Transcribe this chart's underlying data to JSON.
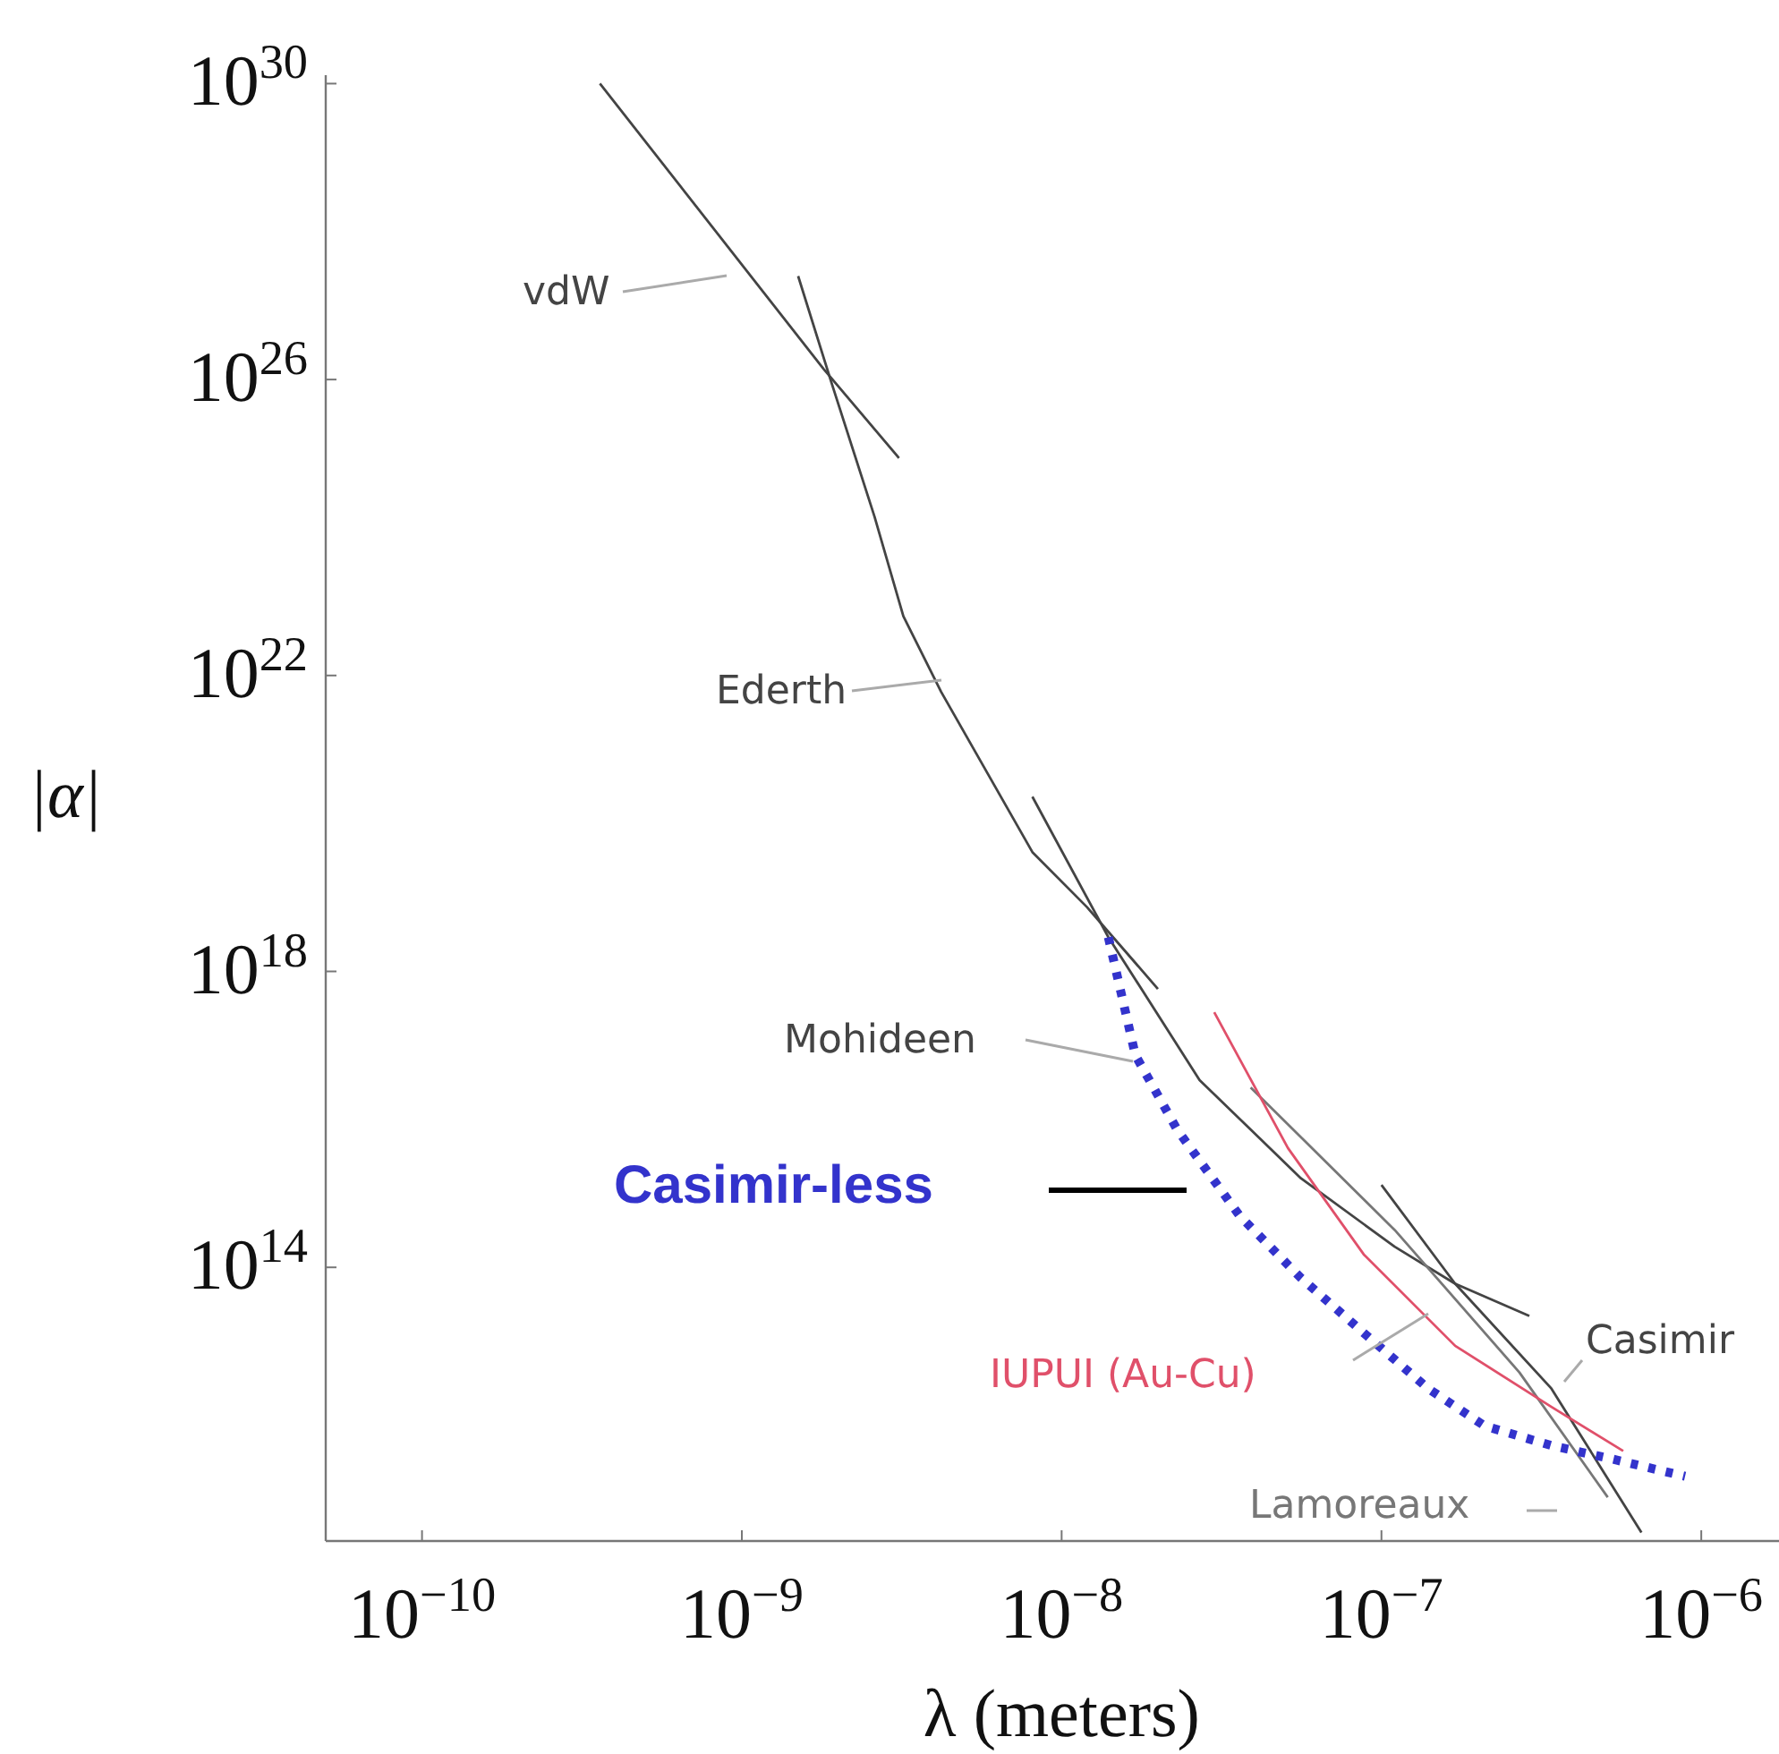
{
  "chart_data": {
    "type": "line",
    "xlabel": "λ (meters)",
    "ylabel": "|α|",
    "log": "xy",
    "grid": false,
    "xlim": [
      5e-11,
      1.75e-06
    ],
    "ylim": [
      20000000000.0,
      1.3e+30
    ],
    "xticks": [
      {
        "value": 1e-10,
        "label": "10$^{−10}$"
      },
      {
        "value": 1e-09,
        "label": "10$^{−9}$"
      },
      {
        "value": 1e-08,
        "label": "10$^{−8}$"
      },
      {
        "value": 1e-07,
        "label": "10$^{−7}$"
      },
      {
        "value": 1e-06,
        "label": "10$^{−6}$"
      }
    ],
    "yticks": [
      {
        "value": 100000000000000.0,
        "label": "10$^{14}$"
      },
      {
        "value": 1e+18,
        "label": "10$^{18}$"
      },
      {
        "value": 1e+22,
        "label": "10$^{22}$"
      },
      {
        "value": 1e+26,
        "label": "10$^{26}$"
      },
      {
        "value": 1e+30,
        "label": "10$^{30}$"
      }
    ],
    "series": [
      {
        "name": "vdW",
        "color": "#444444",
        "x": [
          3.6e-10,
          1.8e-09,
          3.1e-09
        ],
        "values": [
          1e+30,
          1.4e+26,
          8.7e+24
        ]
      },
      {
        "name": "Ederth",
        "color": "#444444",
        "x": [
          1.5e-09,
          1.9e-09,
          2.6e-09,
          3.2e-09,
          4.2e-09,
          8.1e-09,
          1.2e-08,
          2e-08
        ],
        "values": [
          2.5e+27,
          9.5e+25,
          1.4e+24,
          6.3e+22,
          6e+21,
          4.1e+19,
          7.4e+18,
          5.8e+17
        ]
      },
      {
        "name": "Mohideen",
        "color": "#444444",
        "x": [
          8.1e-09,
          1.4e-08,
          2.7e-08,
          5.6e-08,
          1.1e-07,
          1.7e-07,
          2.9e-07
        ],
        "values": [
          2.3e+20,
          2.9e+18,
          3.4e+16,
          1600000000000000.0,
          190000000000000.0,
          60000000000000.0,
          22000000000000.0
        ]
      },
      {
        "name": "Casimir",
        "color": "#444444",
        "x": [
          1e-07,
          1.7e-07,
          3.4e-07,
          6.5e-07
        ],
        "values": [
          1300000000000000.0,
          60000000000000.0,
          2300000000000.0,
          26000000000.0
        ]
      },
      {
        "name": "Lamoreaux",
        "color": "#777777",
        "x": [
          3.9e-08,
          1.1e-07,
          2.7e-07,
          5.1e-07
        ],
        "values": [
          2.7e+16,
          320000000000000.0,
          3800000000000.0,
          78000000000.0
        ]
      },
      {
        "name": "IUPUI (Au-Cu)",
        "color": "#e0506a",
        "x": [
          3e-08,
          5.1e-08,
          8.8e-08,
          1.7e-07,
          3.4e-07,
          5.7e-07
        ],
        "values": [
          2.8e+17,
          4100000000000000.0,
          150000000000000.0,
          8700000000000.0,
          1300000000000.0,
          330000000000.0
        ]
      },
      {
        "name": "Casimir-less",
        "color": "#3333cc",
        "line_style": "dotted",
        "x": [
          1.4e-08,
          1.7e-08,
          2.3e-08,
          3.6e-08,
          5.6e-08,
          8.8e-08,
          1.4e-07,
          2.1e-07,
          3.4e-07,
          5.2e-07,
          8.9e-07
        ],
        "values": [
          2.9e+18,
          7.4e+16,
          7200000000000000.0,
          500000000000000.0,
          72000000000000.0,
          13000000000000.0,
          2300000000000.0,
          720000000000.0,
          390000000000.0,
          260000000000.0,
          150000000000.0
        ]
      }
    ]
  }
}
